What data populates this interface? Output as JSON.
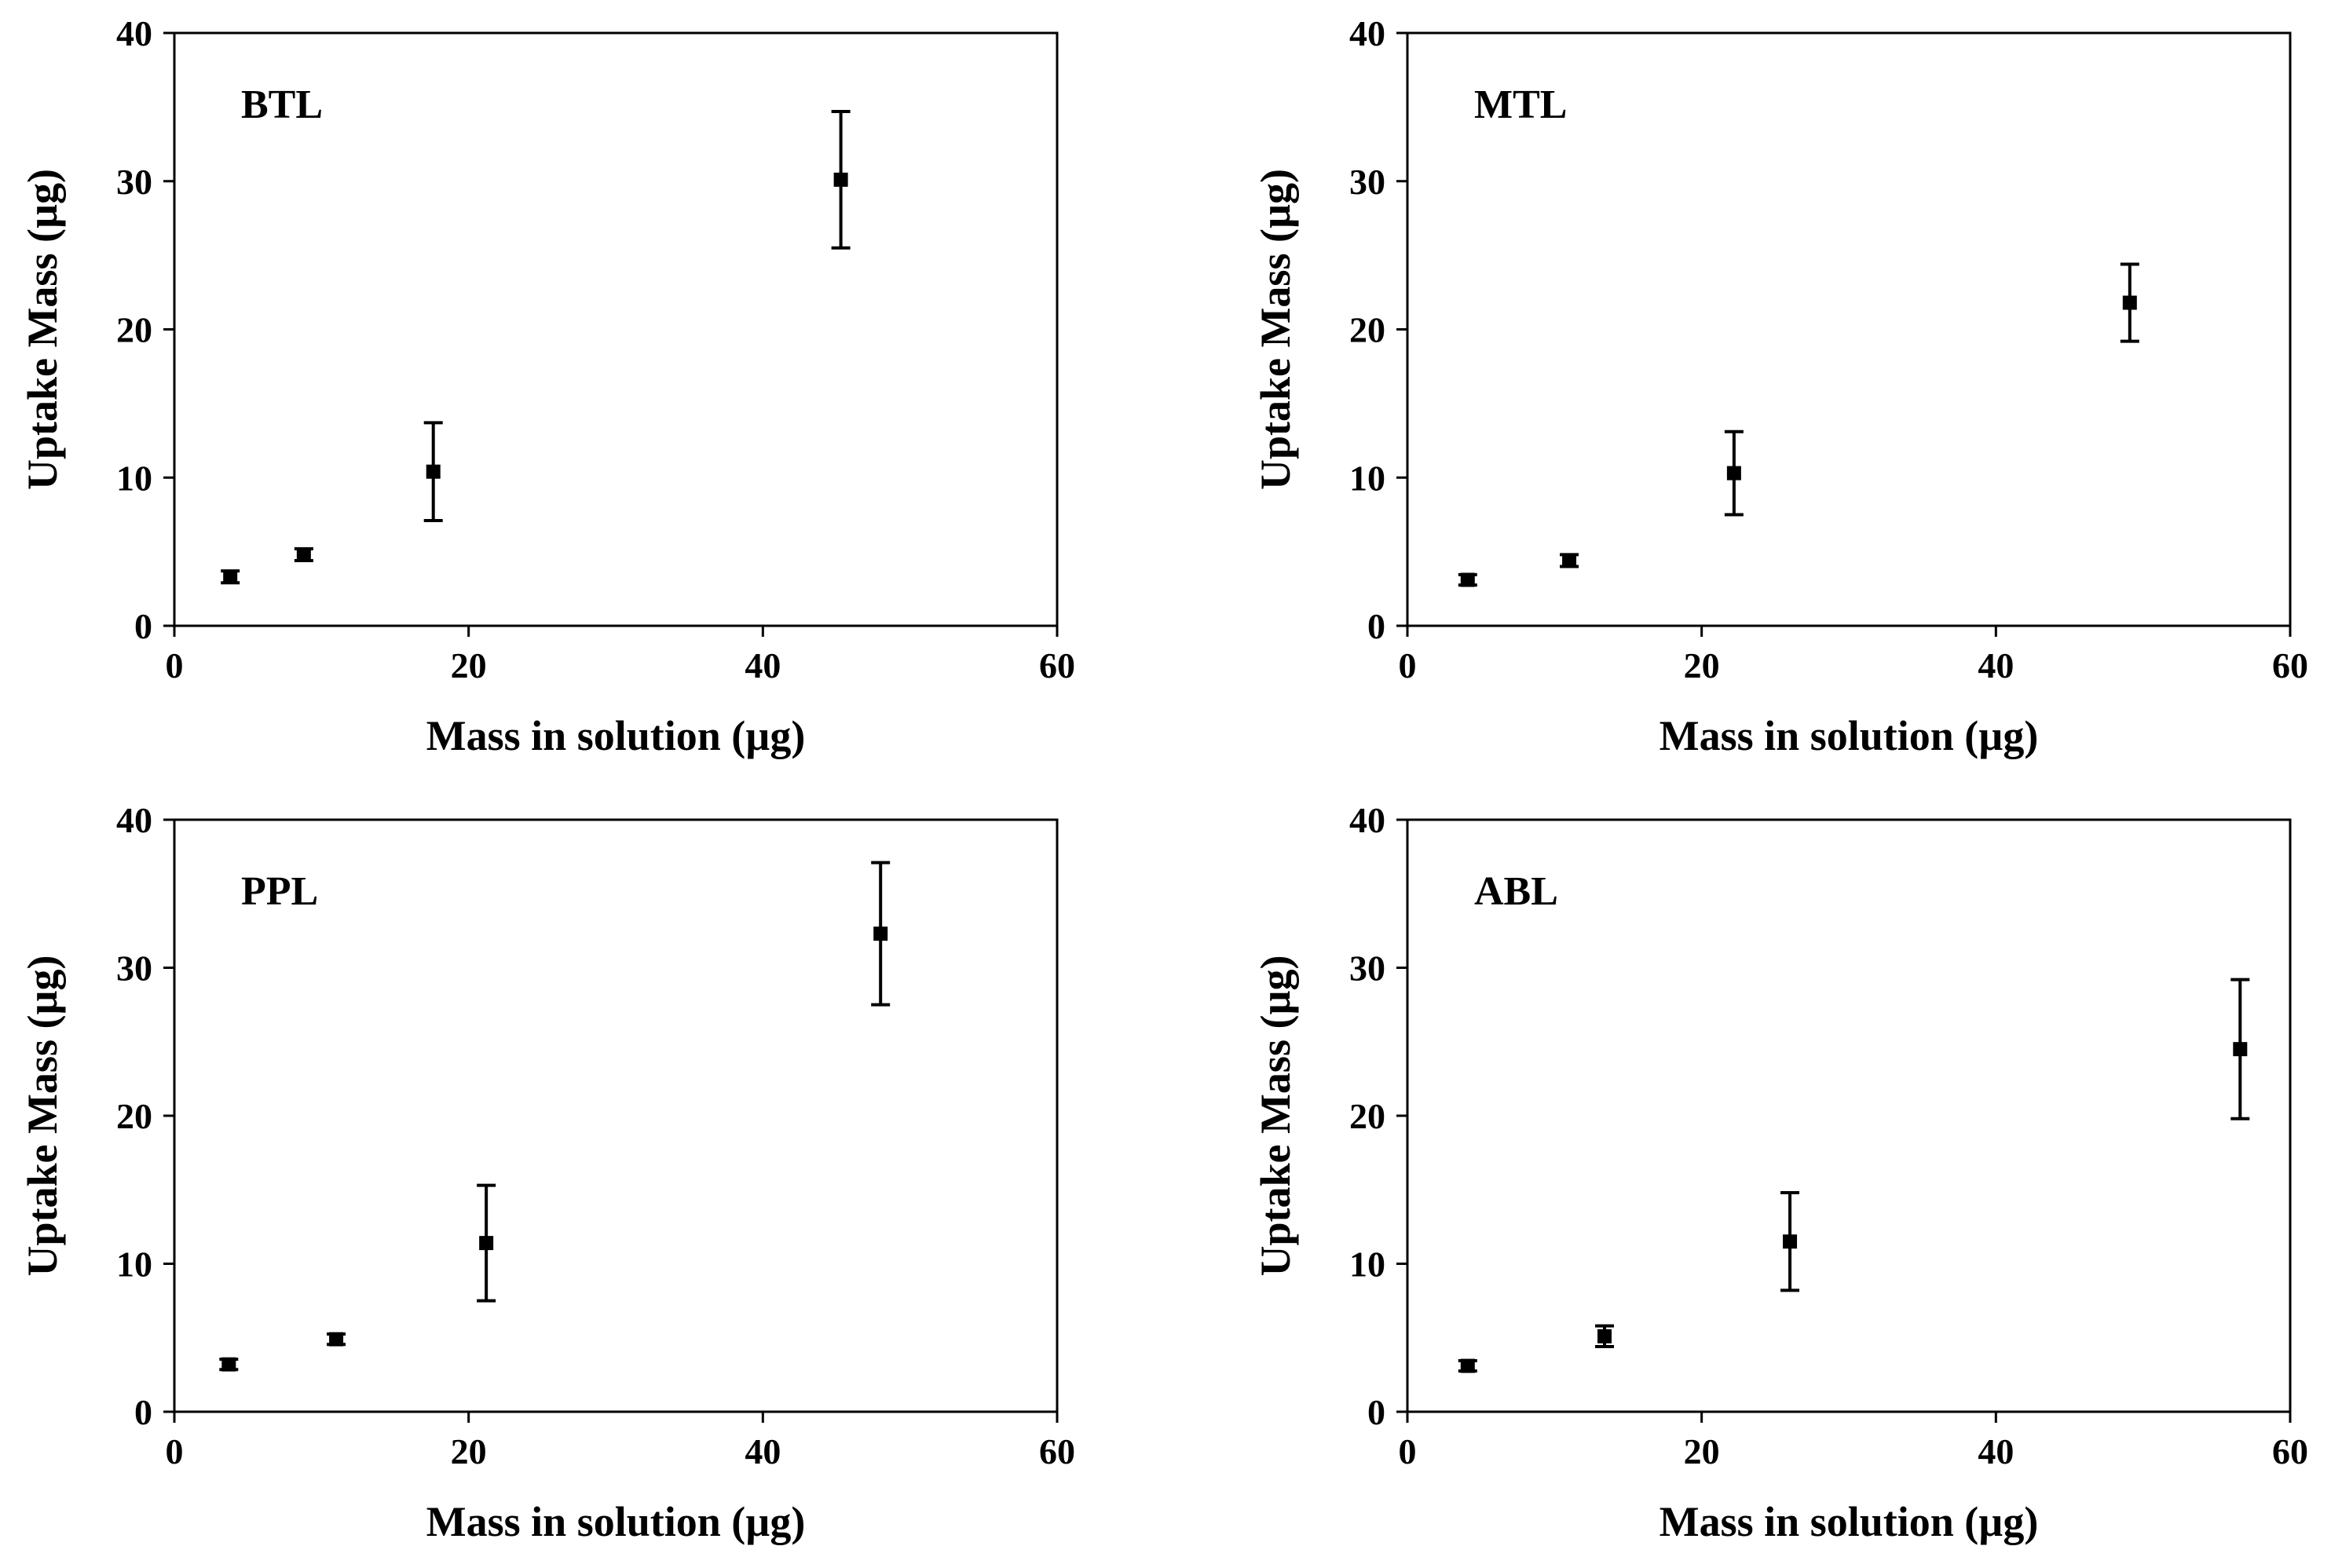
{
  "chart_data": [
    {
      "type": "scatter",
      "panel_label": "BTL",
      "xlabel": "Mass in solution (µg)",
      "ylabel": "Uptake Mass  (µg)",
      "xlim": [
        0,
        60
      ],
      "ylim": [
        0,
        40
      ],
      "xticks": [
        "0",
        "20",
        "40",
        "60"
      ],
      "yticks": [
        "0",
        "10",
        "20",
        "30",
        "40"
      ],
      "grid": false,
      "points": [
        {
          "x": 3.8,
          "y": 3.3,
          "err": 0.4
        },
        {
          "x": 8.8,
          "y": 4.8,
          "err": 0.4
        },
        {
          "x": 17.6,
          "y": 10.4,
          "err": 3.3
        },
        {
          "x": 45.3,
          "y": 30.1,
          "err": 4.6
        }
      ]
    },
    {
      "type": "scatter",
      "panel_label": "MTL",
      "xlabel": "Mass in solution (µg)",
      "ylabel": "Uptake Mass (µg)",
      "xlim": [
        0,
        60
      ],
      "ylim": [
        0,
        40
      ],
      "xticks": [
        "0",
        "20",
        "40",
        "60"
      ],
      "yticks": [
        "0",
        "10",
        "20",
        "30",
        "40"
      ],
      "grid": false,
      "points": [
        {
          "x": 4.1,
          "y": 3.1,
          "err": 0.35
        },
        {
          "x": 11.0,
          "y": 4.4,
          "err": 0.4
        },
        {
          "x": 22.2,
          "y": 10.3,
          "err": 2.8
        },
        {
          "x": 49.1,
          "y": 21.8,
          "err": 2.6
        }
      ]
    },
    {
      "type": "scatter",
      "panel_label": "PPL",
      "xlabel": "Mass in solution (µg)",
      "ylabel": "Uptake Mass (µg)",
      "xlim": [
        0,
        60
      ],
      "ylim": [
        0,
        40
      ],
      "xticks": [
        "0",
        "20",
        "40",
        "60"
      ],
      "yticks": [
        "0",
        "10",
        "20",
        "30",
        "40"
      ],
      "grid": false,
      "points": [
        {
          "x": 3.7,
          "y": 3.2,
          "err": 0.35
        },
        {
          "x": 11.0,
          "y": 4.9,
          "err": 0.35
        },
        {
          "x": 21.2,
          "y": 11.4,
          "err": 3.9
        },
        {
          "x": 48.0,
          "y": 32.3,
          "err": 4.8
        }
      ]
    },
    {
      "type": "scatter",
      "panel_label": "ABL",
      "xlabel": "Mass in solution (µg)",
      "ylabel": "Uptake Mass (µg)",
      "xlim": [
        0,
        60
      ],
      "ylim": [
        0,
        40
      ],
      "xticks": [
        "0",
        "20",
        "40",
        "60"
      ],
      "yticks": [
        "0",
        "10",
        "20",
        "30",
        "40"
      ],
      "grid": false,
      "points": [
        {
          "x": 4.1,
          "y": 3.1,
          "err": 0.35
        },
        {
          "x": 13.4,
          "y": 5.1,
          "err": 0.7
        },
        {
          "x": 26.0,
          "y": 11.5,
          "err": 3.3
        },
        {
          "x": 56.6,
          "y": 24.5,
          "err": 4.7
        }
      ]
    }
  ]
}
